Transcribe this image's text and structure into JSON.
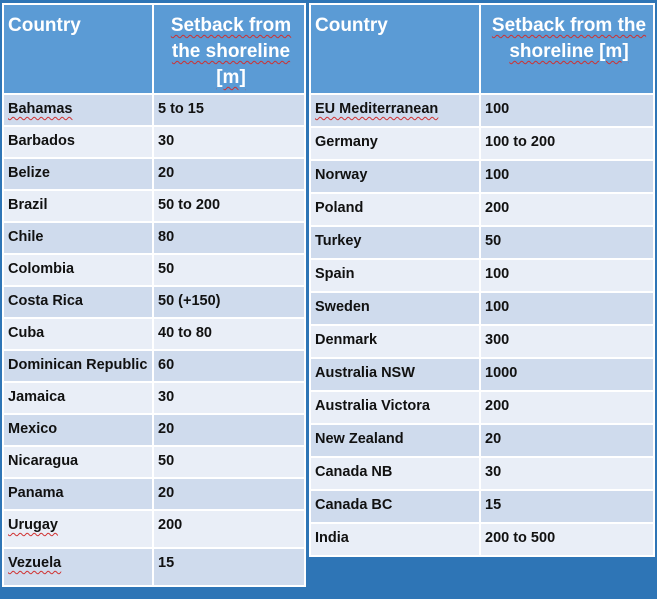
{
  "left_table": {
    "headers": {
      "country": "Country",
      "setback": "Setback from the shoreline [m]"
    },
    "rows": [
      {
        "country": "Bahamas",
        "setback": "5 to 15"
      },
      {
        "country": "Barbados",
        "setback": "30"
      },
      {
        "country": "Belize",
        "setback": "20"
      },
      {
        "country": "Brazil",
        "setback": "50 to 200"
      },
      {
        "country": "Chile",
        "setback": "80"
      },
      {
        "country": "Colombia",
        "setback": "50"
      },
      {
        "country": "Costa Rica",
        "setback": "50 (+150)"
      },
      {
        "country": "Cuba",
        "setback": "40 to 80"
      },
      {
        "country": "Dominican Republic",
        "setback": "60"
      },
      {
        "country": "Jamaica",
        "setback": "30"
      },
      {
        "country": "Mexico",
        "setback": "20"
      },
      {
        "country": "Nicaragua",
        "setback": "50"
      },
      {
        "country": "Panama",
        "setback": "20"
      },
      {
        "country": "Urugay",
        "setback": "200"
      },
      {
        "country": "Vezuela",
        "setback": "15"
      }
    ]
  },
  "right_table": {
    "headers": {
      "country": "Country",
      "setback": "Setback from the shoreline [m]"
    },
    "rows": [
      {
        "country": "EU Mediterranean",
        "setback": "100"
      },
      {
        "country": "Germany",
        "setback": "100 to 200"
      },
      {
        "country": "Norway",
        "setback": "100"
      },
      {
        "country": "Poland",
        "setback": "200"
      },
      {
        "country": "Turkey",
        "setback": "50"
      },
      {
        "country": "Spain",
        "setback": "100"
      },
      {
        "country": "Sweden",
        "setback": "100"
      },
      {
        "country": "Denmark",
        "setback": "300"
      },
      {
        "country": "Australia NSW",
        "setback": "1000"
      },
      {
        "country": "Australia Victora",
        "setback": "200"
      },
      {
        "country": "New Zealand",
        "setback": "20"
      },
      {
        "country": "Canada NB",
        "setback": "30"
      },
      {
        "country": "Canada BC",
        "setback": "15"
      },
      {
        "country": "India",
        "setback": "200 to 500"
      }
    ]
  }
}
